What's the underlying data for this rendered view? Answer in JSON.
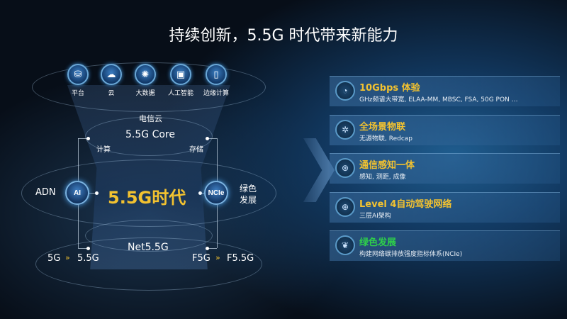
{
  "title": "持续创新，5.5G 时代带来新能力",
  "top_icons": [
    {
      "label": "平台",
      "icon": "platform-icon"
    },
    {
      "label": "云",
      "icon": "cloud-icon"
    },
    {
      "label": "大数据",
      "icon": "big-data-icon"
    },
    {
      "label": "人工智能",
      "icon": "ai-chip-icon"
    },
    {
      "label": "边缘计算",
      "icon": "edge-computing-icon"
    }
  ],
  "diagram": {
    "telecom_cloud": "电信云",
    "core": "5.5G Core",
    "compute": "计算",
    "storage": "存储",
    "center": "5.5G时代",
    "left_badge": "AI",
    "left_label": "ADN",
    "right_badge": "NCIe",
    "right_label_1": "绿色",
    "right_label_2": "发展",
    "net": "Net5.5G",
    "left_evo_from": "5G",
    "left_evo_to": "5.5G",
    "right_evo_from": "F5G",
    "right_evo_to": "F5.5G"
  },
  "features": [
    {
      "title": "10Gbps 体验",
      "subtitle": "GHz频谱大带宽, ELAA-MM, MBSC, FSA, 50G PON …",
      "icon": "speedometer-icon",
      "color": "#f2c230"
    },
    {
      "title": "全场景物联",
      "subtitle": "无源物联, Redcap",
      "icon": "iot-network-icon",
      "color": "#f2c230"
    },
    {
      "title": "通信感知一体",
      "subtitle": "感知, 测距, 成像",
      "icon": "sensing-icon",
      "color": "#f2c230"
    },
    {
      "title": "Level 4自动驾驶网络",
      "subtitle": "三层AI架构",
      "icon": "globe-network-icon",
      "color": "#f2c230"
    },
    {
      "title": "绿色发展",
      "subtitle": "构建网络碳排放强度指标体系(NCIe)",
      "icon": "leaf-icon",
      "color": "#2ed04a"
    }
  ],
  "colors": {
    "accent_yellow": "#f2c230",
    "green": "#2ed04a"
  }
}
